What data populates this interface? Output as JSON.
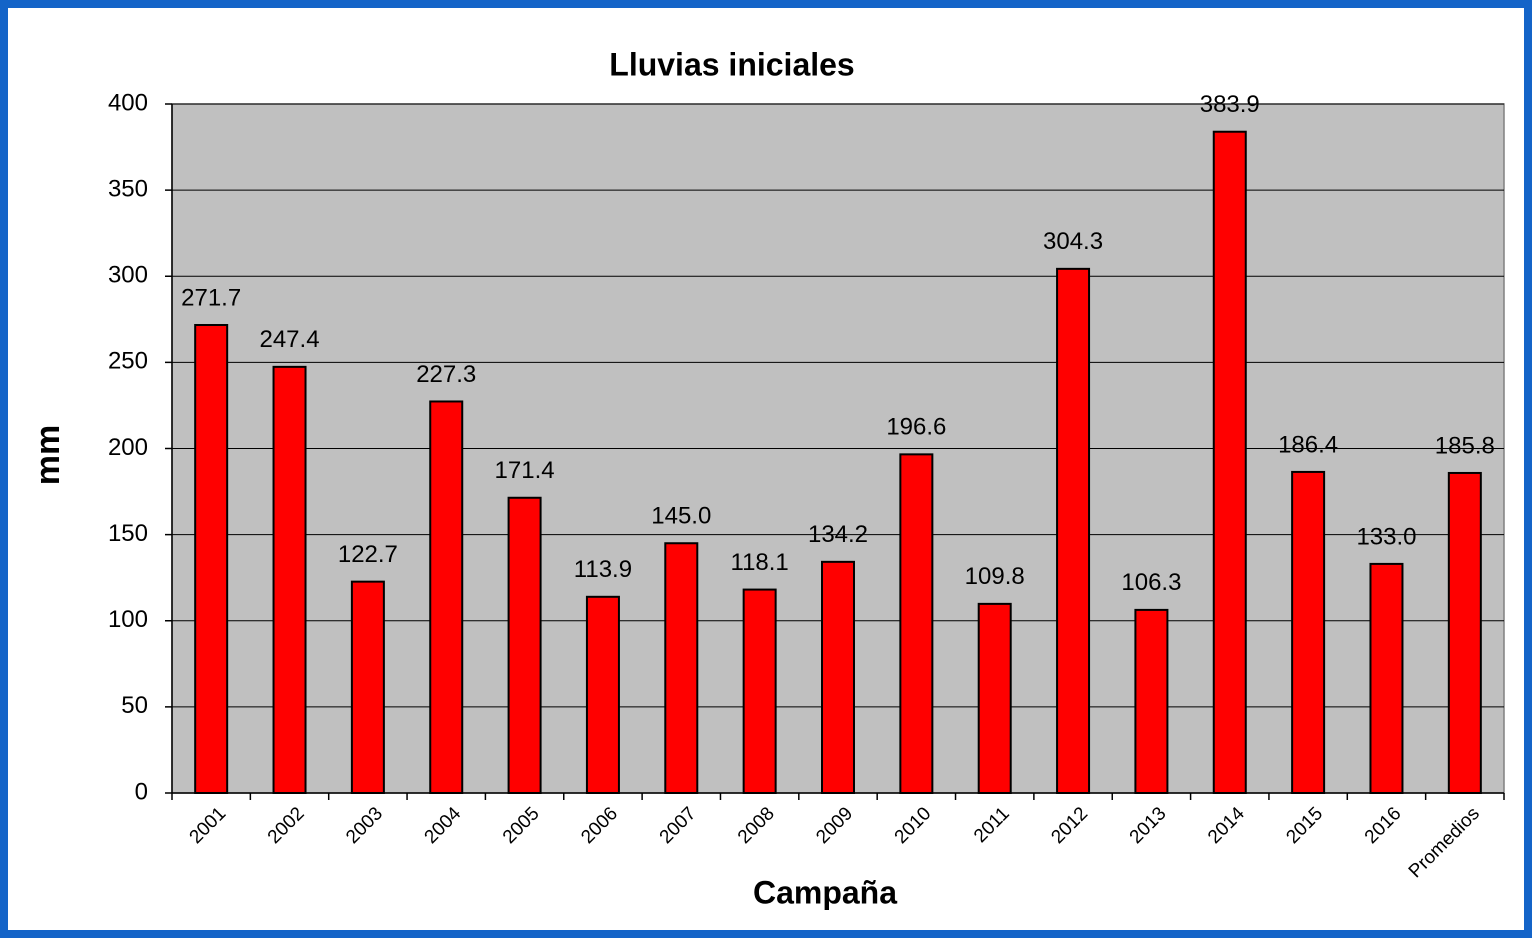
{
  "chart_data": {
    "type": "bar",
    "title": "Lluvias iniciales",
    "x_label": "Campaña",
    "y_label": "mm",
    "categories": [
      "2001",
      "2002",
      "2003",
      "2004",
      "2005",
      "2006",
      "2007",
      "2008",
      "2009",
      "2010",
      "2011",
      "2012",
      "2013",
      "2014",
      "2015",
      "2016",
      "Promedios"
    ],
    "values": [
      271.7,
      247.4,
      122.7,
      227.3,
      171.4,
      113.9,
      145.0,
      118.1,
      134.2,
      196.6,
      109.8,
      304.3,
      106.3,
      383.9,
      186.4,
      133.0,
      185.8
    ],
    "value_labels": [
      "271.7",
      "247.4",
      "122.7",
      "227.3",
      "171.4",
      "113.9",
      "145.0",
      "118.1",
      "134.2",
      "196.6",
      "109.8",
      "304.3",
      "106.3",
      "383.9",
      "186.4",
      "133.0",
      "185.8"
    ],
    "color": "#ff0000",
    "ylim": [
      0,
      400
    ],
    "yticks": [
      0,
      50,
      100,
      150,
      200,
      250,
      300,
      350,
      400
    ],
    "grid": true
  }
}
